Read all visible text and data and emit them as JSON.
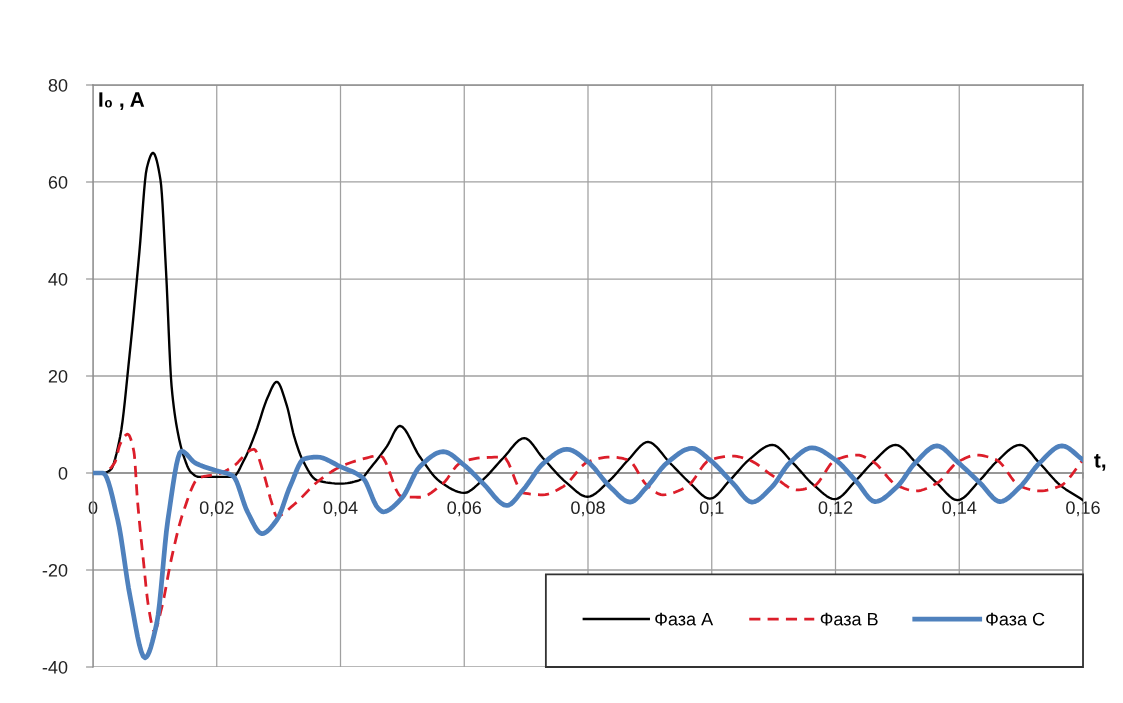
{
  "chart_data": {
    "type": "line",
    "xlabel": "t,",
    "ylabel": "I₀ , A",
    "xlim": [
      0,
      0.16
    ],
    "xticks": [
      0,
      {
        "value": 0.02,
        "label": "0,02"
      },
      {
        "value": 0.04,
        "label": "0,04"
      },
      {
        "value": 0.06,
        "label": "0,06"
      },
      {
        "value": 0.08,
        "label": "0,08"
      },
      {
        "value": 0.1,
        "label": "0,1"
      },
      {
        "value": 0.12,
        "label": "0,12"
      },
      {
        "value": 0.14,
        "label": "0,14"
      },
      {
        "value": 0.16,
        "label": "0,16"
      }
    ],
    "ylim": [
      -40,
      80
    ],
    "yticks": [
      -40,
      -20,
      0,
      20,
      40,
      60,
      80
    ],
    "grid": true,
    "legend": "bottom right",
    "series": [
      {
        "name": "Фаза А",
        "color": "#000000",
        "line_style": "solid",
        "x": [
          0,
          0.0016,
          0.0028,
          0.0044,
          0.0059,
          0.0075,
          0.0087,
          0.0097,
          0.0109,
          0.0118,
          0.0127,
          0.0137,
          0.0146,
          0.0158,
          0.0171,
          0.0226,
          0.0245,
          0.0263,
          0.0282,
          0.0297,
          0.0313,
          0.0325,
          0.0338,
          0.0362,
          0.04,
          0.043,
          0.045,
          0.0475,
          0.0496,
          0.0528,
          0.0561,
          0.06,
          0.063,
          0.0663,
          0.0697,
          0.0727,
          0.0766,
          0.0799,
          0.0836,
          0.0865,
          0.0897,
          0.0933,
          0.0965,
          0.0997,
          0.103,
          0.106,
          0.1098,
          0.1131,
          0.1164,
          0.1199,
          0.1234,
          0.1261,
          0.1297,
          0.1331,
          0.1364,
          0.1397,
          0.1434,
          0.146,
          0.1498,
          0.153,
          0.1563,
          0.16
        ],
        "values": [
          0,
          0,
          0.6,
          7.6,
          24.2,
          45.6,
          62.9,
          66,
          60.5,
          41.7,
          17.9,
          8.4,
          3.7,
          0.2,
          -0.8,
          -0.8,
          2.9,
          8.4,
          15.5,
          18.8,
          14,
          7.6,
          2.9,
          -1.5,
          -2.2,
          -1.5,
          1.3,
          5.5,
          9.7,
          3.4,
          -1.8,
          -4.1,
          -1.4,
          3.1,
          7.2,
          3.1,
          -2.1,
          -4.9,
          -1.4,
          2.7,
          6.4,
          2.0,
          -2.1,
          -5.3,
          -1.4,
          2.7,
          5.8,
          2.1,
          -2.4,
          -5.4,
          -1.4,
          2.3,
          5.8,
          2.0,
          -2.1,
          -5.6,
          -1.4,
          2.3,
          5.8,
          2.0,
          -2.5,
          -5.6
        ]
      },
      {
        "name": "Фаза В",
        "color": "#dc1e2a",
        "line_style": "dashed",
        "x": [
          0,
          0.0016,
          0.0035,
          0.0044,
          0.0056,
          0.0066,
          0.0072,
          0.0081,
          0.009,
          0.0099,
          0.0111,
          0.0127,
          0.0146,
          0.0171,
          0.0202,
          0.0226,
          0.026,
          0.0276,
          0.0288,
          0.0297,
          0.0325,
          0.0362,
          0.04,
          0.0436,
          0.0464,
          0.0499,
          0.0528,
          0.0566,
          0.0593,
          0.0625,
          0.0663,
          0.0695,
          0.0727,
          0.076,
          0.08,
          0.0836,
          0.0865,
          0.0895,
          0.0921,
          0.096,
          0.0997,
          0.1034,
          0.106,
          0.11,
          0.1137,
          0.1165,
          0.12,
          0.1235,
          0.126,
          0.13,
          0.133,
          0.1364,
          0.1398,
          0.1428,
          0.146,
          0.1498,
          0.153,
          0.1563,
          0.16
        ],
        "values": [
          0,
          0,
          2.1,
          6,
          8,
          4.5,
          -5.8,
          -17.5,
          -27.8,
          -32.6,
          -27.8,
          -17.5,
          -8,
          -1,
          -0.2,
          1.3,
          4.9,
          -0.2,
          -5.8,
          -8.9,
          -6.5,
          -1.9,
          1.3,
          2.9,
          3.6,
          -4.9,
          -5,
          -2.1,
          2,
          3.1,
          3.3,
          -4.1,
          -4.5,
          -2.8,
          2.3,
          3.3,
          2.7,
          -2.5,
          -4.5,
          -2.8,
          2.7,
          3.5,
          2.7,
          -0.7,
          -3.5,
          -2.7,
          2.7,
          3.7,
          2.4,
          -2.6,
          -3.7,
          -2.1,
          2.3,
          3.7,
          2.7,
          -2.7,
          -3.7,
          -2.7,
          2.7
        ]
      },
      {
        "name": "Фаза С",
        "color": "#4f81bd",
        "line_style": "solid",
        "x": [
          0,
          0.0016,
          0.004,
          0.006,
          0.0084,
          0.0103,
          0.0121,
          0.0143,
          0.0165,
          0.0196,
          0.0226,
          0.025,
          0.0273,
          0.0297,
          0.0319,
          0.0341,
          0.0362,
          0.04,
          0.0436,
          0.0461,
          0.0469,
          0.0499,
          0.0528,
          0.0566,
          0.06,
          0.063,
          0.0669,
          0.0695,
          0.0728,
          0.0766,
          0.08,
          0.0836,
          0.0868,
          0.0895,
          0.0927,
          0.0968,
          0.0997,
          0.1034,
          0.1065,
          0.1097,
          0.1126,
          0.1162,
          0.12,
          0.1234,
          0.1264,
          0.1299,
          0.1329,
          0.1364,
          0.1397,
          0.1434,
          0.1466,
          0.1498,
          0.153,
          0.1566,
          0.16
        ],
        "values": [
          0,
          0,
          -9.7,
          -25.5,
          -38.1,
          -31,
          -9.7,
          4.5,
          2.1,
          0.6,
          -0.6,
          -8.1,
          -12.5,
          -9.7,
          -2.6,
          2.9,
          3.3,
          1.3,
          -1,
          -7.3,
          -8,
          -5.2,
          1.3,
          4.4,
          1.6,
          -2.1,
          -6.7,
          -3.5,
          2,
          4.9,
          2.3,
          -2.9,
          -6,
          -2.9,
          2,
          5.1,
          2.7,
          -2.1,
          -6,
          -2.9,
          2.1,
          5.2,
          2.7,
          -1.8,
          -5.9,
          -2.9,
          2.1,
          5.6,
          2.3,
          -2.1,
          -5.9,
          -2.9,
          2.1,
          5.6,
          2.7
        ]
      }
    ]
  }
}
